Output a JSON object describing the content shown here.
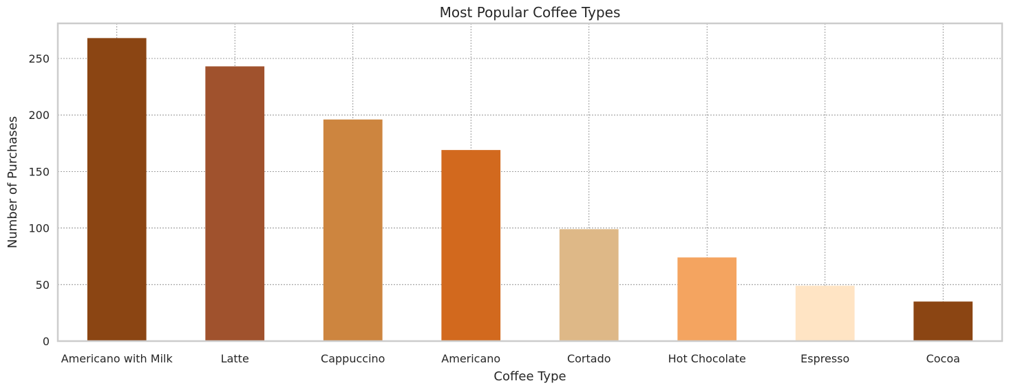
{
  "chart_data": {
    "type": "bar",
    "title": "Most Popular Coffee Types",
    "xlabel": "Coffee Type",
    "ylabel": "Number of Purchases",
    "categories": [
      "Americano with Milk",
      "Latte",
      "Cappuccino",
      "Americano",
      "Cortado",
      "Hot Chocolate",
      "Espresso",
      "Cocoa"
    ],
    "values": [
      268,
      243,
      196,
      169,
      99,
      74,
      49,
      35
    ],
    "colors": [
      "#8B4513",
      "#A0522D",
      "#CD853F",
      "#D2691E",
      "#DEB887",
      "#F4A460",
      "#FFE4C4",
      "#8B4513"
    ],
    "ylim": [
      0,
      281
    ],
    "yticks": [
      0,
      50,
      100,
      150,
      200,
      250
    ],
    "grid": true,
    "grid_color": "#808080",
    "spine_color": "#cccccc"
  }
}
